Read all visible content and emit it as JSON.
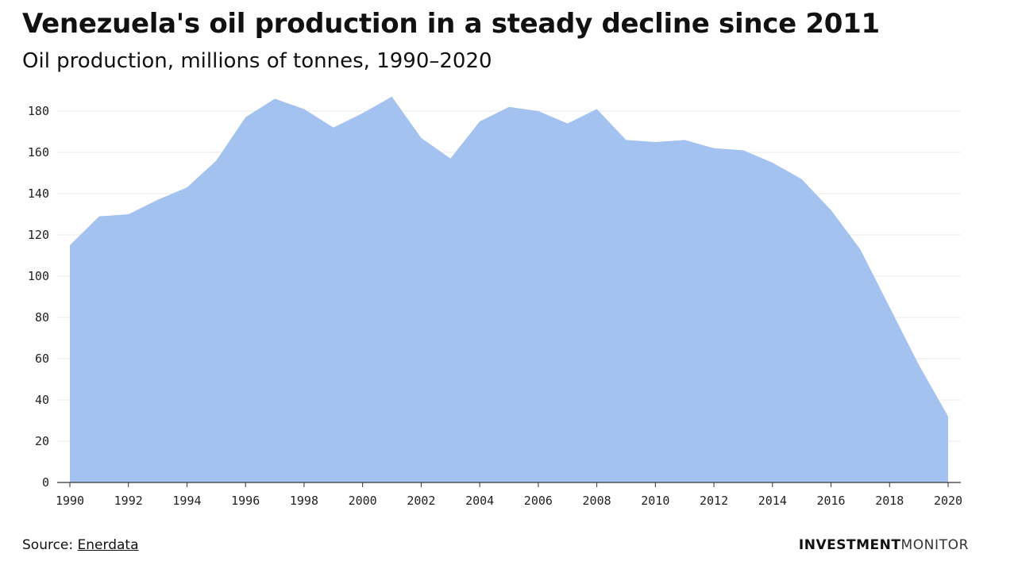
{
  "header": {
    "title": "Venezuela's oil production in a steady decline since 2011",
    "subtitle": "Oil production, millions of tonnes, 1990–2020"
  },
  "footer": {
    "source_prefix": "Source: ",
    "source_link": "Enerdata",
    "brand_bold": "INVESTMENT",
    "brand_light": "MONITOR"
  },
  "colors": {
    "area_fill": "#a4c2ef",
    "grid": "#e9e9e9",
    "axis": "#333333"
  },
  "chart_data": {
    "type": "area",
    "title": "Venezuela's oil production in a steady decline since 2011",
    "subtitle": "Oil production, millions of tonnes, 1990–2020",
    "xlabel": "",
    "ylabel": "",
    "xlim": [
      1990,
      2020
    ],
    "ylim": [
      0,
      180
    ],
    "yticks": [
      0,
      20,
      40,
      60,
      80,
      100,
      120,
      140,
      160,
      180
    ],
    "xticks": [
      1990,
      1992,
      1994,
      1996,
      1998,
      2000,
      2002,
      2004,
      2006,
      2008,
      2010,
      2012,
      2014,
      2016,
      2018,
      2020
    ],
    "grid": true,
    "legend": "none",
    "series": [
      {
        "name": "Oil production",
        "x": [
          1990,
          1991,
          1992,
          1993,
          1994,
          1995,
          1996,
          1997,
          1998,
          1999,
          2000,
          2001,
          2002,
          2003,
          2004,
          2005,
          2006,
          2007,
          2008,
          2009,
          2010,
          2011,
          2012,
          2013,
          2014,
          2015,
          2016,
          2017,
          2018,
          2019,
          2020
        ],
        "values": [
          115,
          129,
          130,
          137,
          143,
          156,
          177,
          186,
          181,
          172,
          179,
          187,
          167,
          157,
          175,
          182,
          180,
          174,
          181,
          166,
          165,
          166,
          162,
          161,
          155,
          147,
          132,
          113,
          85,
          57,
          32
        ]
      }
    ]
  }
}
